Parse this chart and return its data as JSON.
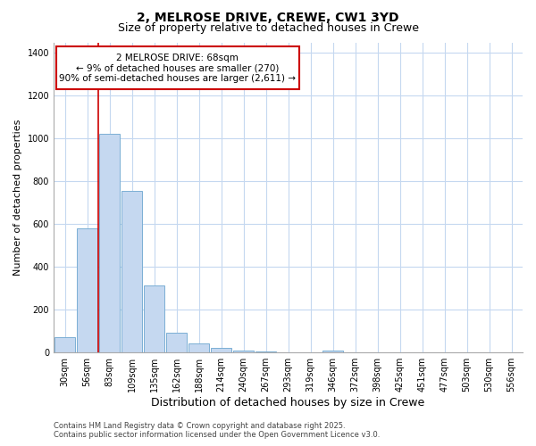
{
  "title": "2, MELROSE DRIVE, CREWE, CW1 3YD",
  "subtitle": "Size of property relative to detached houses in Crewe",
  "xlabel": "Distribution of detached houses by size in Crewe",
  "ylabel": "Number of detached properties",
  "categories": [
    "30sqm",
    "56sqm",
    "83sqm",
    "109sqm",
    "135sqm",
    "162sqm",
    "188sqm",
    "214sqm",
    "240sqm",
    "267sqm",
    "293sqm",
    "319sqm",
    "346sqm",
    "372sqm",
    "398sqm",
    "425sqm",
    "451sqm",
    "477sqm",
    "503sqm",
    "530sqm",
    "556sqm"
  ],
  "values": [
    70,
    580,
    1020,
    755,
    310,
    90,
    40,
    18,
    8,
    5,
    0,
    0,
    8,
    0,
    0,
    0,
    0,
    0,
    0,
    0,
    0
  ],
  "bar_color": "#c5d8f0",
  "bar_edge_color": "#7bafd4",
  "vline_x": 1.5,
  "vline_color": "#cc0000",
  "annotation_text_line1": "2 MELROSE DRIVE: 68sqm",
  "annotation_text_line2": "← 9% of detached houses are smaller (270)",
  "annotation_text_line3": "90% of semi-detached houses are larger (2,611) →",
  "annotation_box_color": "#cc0000",
  "plot_bg_color": "#ffffff",
  "fig_bg_color": "#ffffff",
  "grid_color": "#c5d8f0",
  "ylim": [
    0,
    1450
  ],
  "yticks": [
    0,
    200,
    400,
    600,
    800,
    1000,
    1200,
    1400
  ],
  "footer_line1": "Contains HM Land Registry data © Crown copyright and database right 2025.",
  "footer_line2": "Contains public sector information licensed under the Open Government Licence v3.0.",
  "title_fontsize": 10,
  "subtitle_fontsize": 9,
  "ylabel_fontsize": 8,
  "xlabel_fontsize": 9,
  "tick_fontsize": 7,
  "annotation_fontsize": 7.5,
  "footer_fontsize": 6
}
